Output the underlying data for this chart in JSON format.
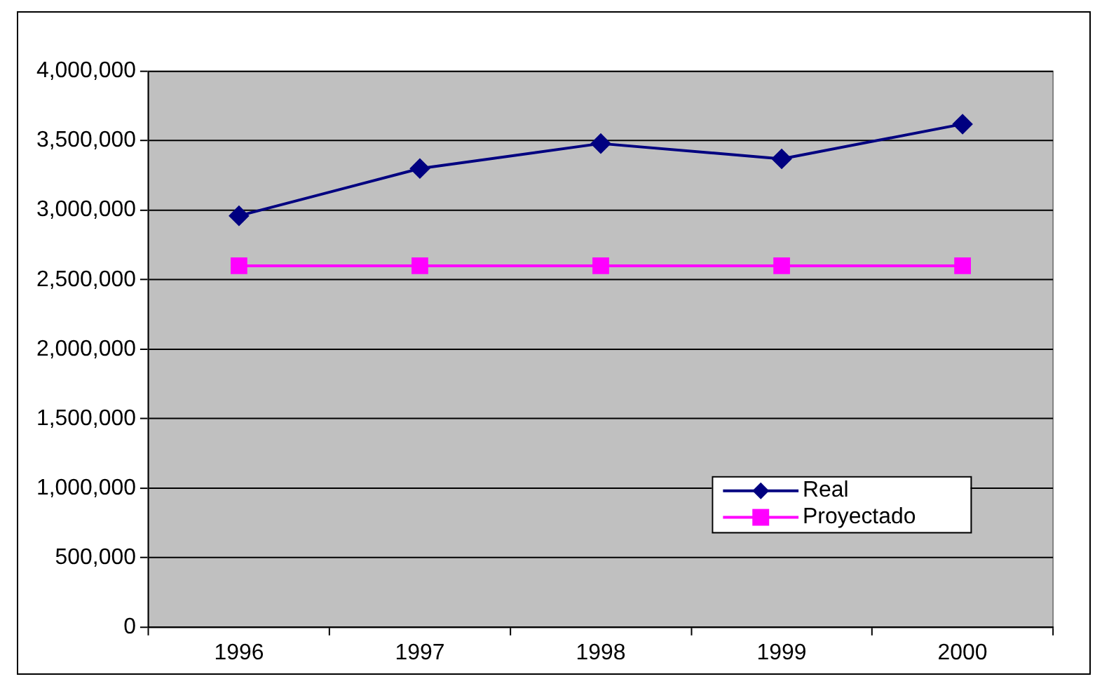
{
  "chart_data": {
    "type": "line",
    "categories": [
      "1996",
      "1997",
      "1998",
      "1999",
      "2000"
    ],
    "series": [
      {
        "name": "Real",
        "color": "#000080",
        "values": [
          2960000,
          3300000,
          3480000,
          3370000,
          3620000
        ],
        "marker": "diamond"
      },
      {
        "name": "Proyectado",
        "color": "#ff00ff",
        "values": [
          2600000,
          2600000,
          2600000,
          2600000,
          2600000
        ],
        "marker": "square"
      }
    ],
    "ylim": [
      0,
      4000000
    ],
    "yticks": [
      0,
      {
        "value": 500000,
        "label": "500,000"
      },
      {
        "value": 1000000,
        "label": "1,000,000"
      },
      {
        "value": 1500000,
        "label": "1,500,000"
      },
      {
        "value": 2000000,
        "label": "2,000,000"
      },
      {
        "value": 2500000,
        "label": "2,500,000"
      },
      {
        "value": 3000000,
        "label": "3,000,000"
      },
      {
        "value": 3500000,
        "label": "3,500,000"
      },
      {
        "value": 4000000,
        "label": "4,000,000"
      }
    ],
    "grid": "y",
    "legend": "bottom right",
    "line_style": "solid"
  }
}
